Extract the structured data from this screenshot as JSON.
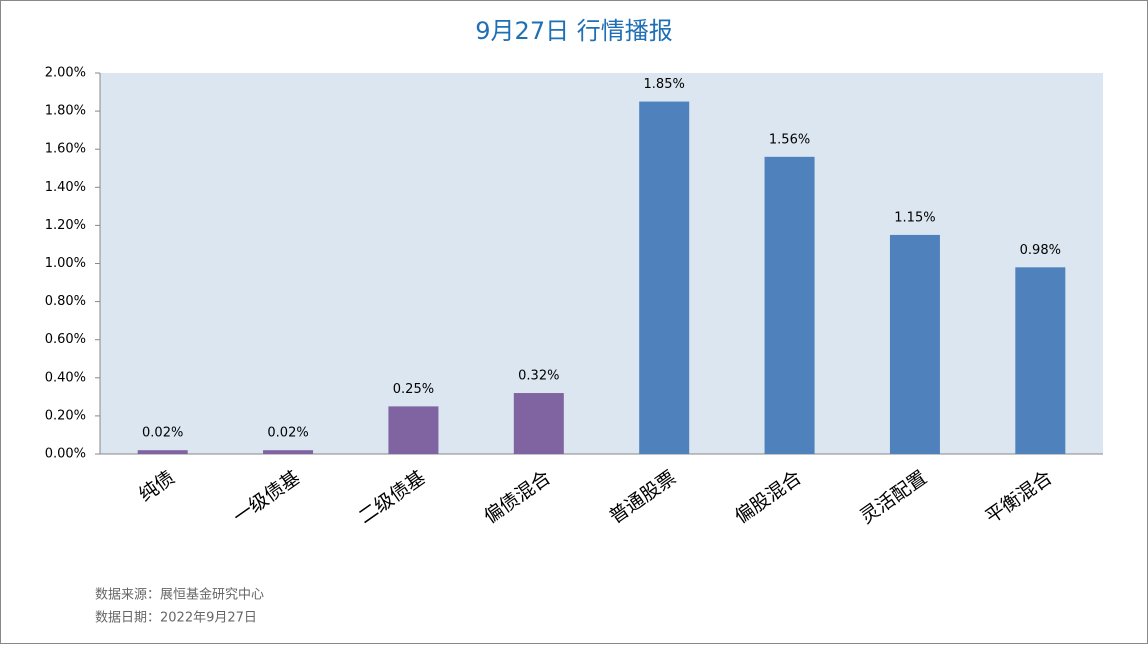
{
  "chart_data": {
    "type": "bar",
    "title": "9月27日  行情播报",
    "categories": [
      "纯债",
      "一级债基",
      "二级债基",
      "偏债混合",
      "普通股票",
      "偏股混合",
      "灵活配置",
      "平衡混合"
    ],
    "values": [
      0.02,
      0.02,
      0.25,
      0.32,
      1.85,
      1.56,
      1.15,
      0.98
    ],
    "value_labels": [
      "0.02%",
      "0.02%",
      "0.25%",
      "0.32%",
      "1.85%",
      "1.56%",
      "1.15%",
      "0.98%"
    ],
    "colors": [
      "#8064a2",
      "#8064a2",
      "#8064a2",
      "#8064a2",
      "#4f81bd",
      "#4f81bd",
      "#4f81bd",
      "#4f81bd"
    ],
    "ylim": [
      0,
      2
    ],
    "yticks": [
      {
        "value": 0,
        "label": "0.00%"
      },
      {
        "value": 0.2,
        "label": "0.20%"
      },
      {
        "value": 0.4,
        "label": "0.40%"
      },
      {
        "value": 0.6,
        "label": "0.60%"
      },
      {
        "value": 0.8,
        "label": "0.80%"
      },
      {
        "value": 1.0,
        "label": "1.00%"
      },
      {
        "value": 1.2,
        "label": "1.20%"
      },
      {
        "value": 1.4,
        "label": "1.40%"
      },
      {
        "value": 1.6,
        "label": "1.60%"
      },
      {
        "value": 1.8,
        "label": "1.80%"
      },
      {
        "value": 2.0,
        "label": "2.00%"
      }
    ],
    "source": "数据来源：展恒基金研究中心",
    "date_note": "数据日期：2022年9月27日"
  }
}
